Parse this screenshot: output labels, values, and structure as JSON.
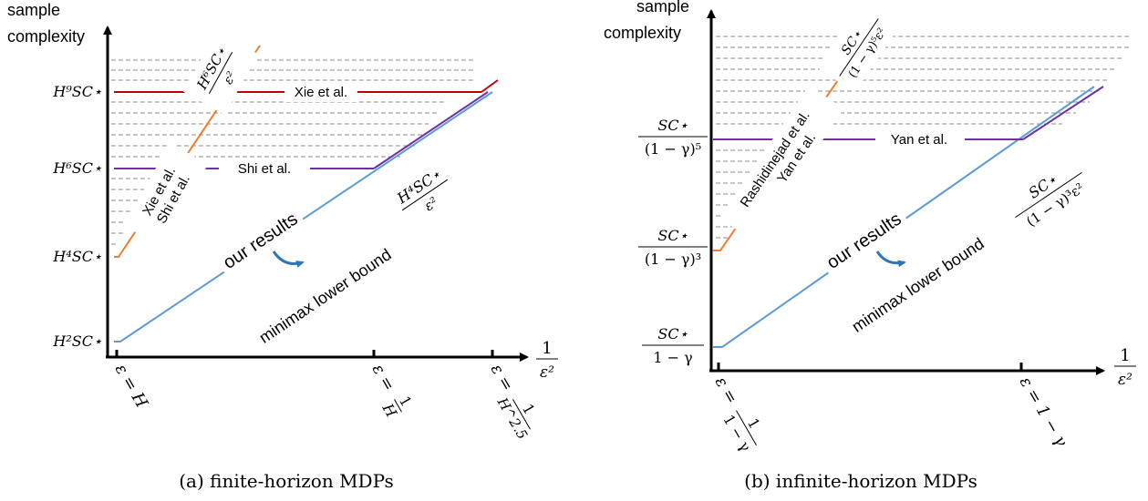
{
  "colors": {
    "axis": "#000000",
    "ours": "#5b9bd5",
    "orange": "#ed7d31",
    "red": "#c00000",
    "purple": "#7030a0",
    "dashed": "#8c8c8c",
    "arrow": "#2e75b6"
  },
  "panel_a": {
    "ylabel_line1": "sample",
    "ylabel_line2": "complexity",
    "ytick_h2": "H²SC⋆",
    "ytick_h4": "H⁴SC⋆",
    "ytick_h6": "H⁶SC⋆",
    "ytick_h9": "H⁹SC⋆",
    "xlabel_num": "1",
    "xlabel_den": "ε²",
    "xtick_1": "ε = H",
    "xtick_2_left": "ε = ",
    "xtick_2_frac_num": "1",
    "xtick_2_frac_den": "H",
    "xtick_3_left": "ε = ",
    "xtick_3_frac_num": "1",
    "xtick_3_frac_den": "H^2.5",
    "label_xie": "Xie et al.",
    "label_shi": "Shi et al.",
    "label_xie_shi_1": "Xie et al.",
    "label_xie_shi_2": "Shi et al.",
    "label_orange_num": "H⁶SC⋆",
    "label_orange_den": "ε²",
    "our_results": "our results",
    "minimax": "minimax lower bound",
    "minimax_num": "H⁴SC⋆",
    "minimax_den": "ε²",
    "caption": "(a) finite-horizon MDPs"
  },
  "panel_b": {
    "ylabel_line1": "sample",
    "ylabel_line2": "complexity",
    "ytick_1_num": "SC⋆",
    "ytick_1_den": "1 − γ",
    "ytick_3_num": "SC⋆",
    "ytick_3_den": "(1 − γ)³",
    "ytick_5_num": "SC⋆",
    "ytick_5_den": "(1 − γ)⁵",
    "xlabel_num": "1",
    "xlabel_den": "ε²",
    "xtick_1_left": "ε = ",
    "xtick_1_frac_num": "1",
    "xtick_1_frac_den": "1 − γ",
    "xtick_2": "ε = 1 − γ",
    "label_yan": "Yan et al.",
    "label_rash_1": "Rashidinejad et al.",
    "label_rash_2": "Yan et al.",
    "label_orange_num": "SC⋆",
    "label_orange_den": "(1 − γ)⁵ε²",
    "our_results": "our results",
    "minimax": "minimax lower bound",
    "minimax_num": "SC⋆",
    "minimax_den": "(1 − γ)³ε²",
    "caption": "(b) infinite-horizon MDPs"
  }
}
